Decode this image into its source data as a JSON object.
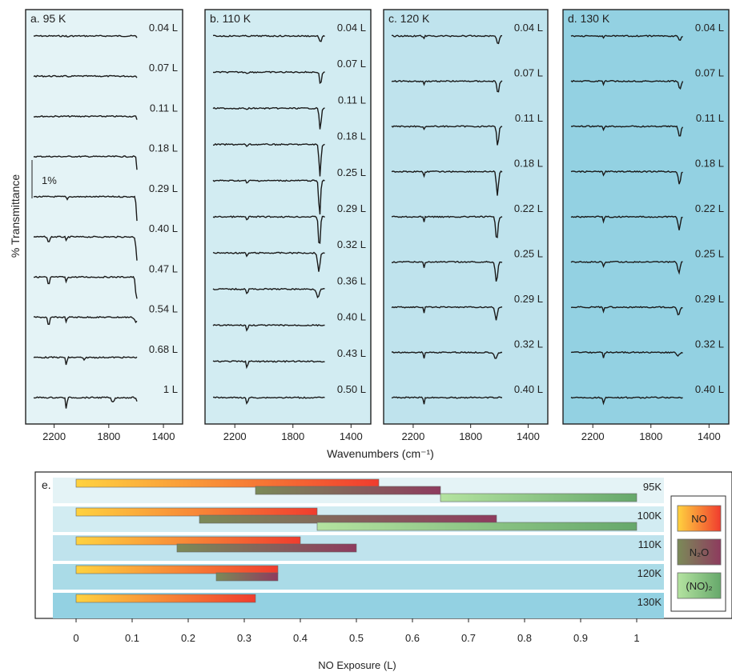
{
  "figure": {
    "ylabel": "% Transmittance",
    "xlabel": "Wavenumbers (cm⁻¹)",
    "scale_bar_label": "1%",
    "bottom_panel_label": "e.",
    "bottom_xlabel": "NO Exposure (L)"
  },
  "chart_data": [
    {
      "type": "line",
      "panel": "a",
      "title": "a. 95 K",
      "background": "#e4f3f6",
      "x_ticks": [
        2200,
        1800,
        1400
      ],
      "xlim": [
        2350,
        1330
      ],
      "traces": [
        {
          "label": "0.04 L",
          "peaks": [
            {
              "center": 1580,
              "depth": 8,
              "width": 13
            },
            {
              "center": 2100,
              "depth": 2,
              "width": 6
            }
          ]
        },
        {
          "label": "0.07 L",
          "peaks": [
            {
              "center": 1580,
              "depth": 12,
              "width": 11
            },
            {
              "center": 2100,
              "depth": 2,
              "width": 6
            }
          ]
        },
        {
          "label": "0.11 L",
          "peaks": [
            {
              "center": 1582,
              "depth": 28,
              "width": 10
            }
          ]
        },
        {
          "label": "0.18 L",
          "peaks": [
            {
              "center": 1586,
              "depth": 45,
              "width": 9
            }
          ]
        },
        {
          "label": "0.29 L",
          "peaks": [
            {
              "center": 1590,
              "depth": 35,
              "width": 11
            },
            {
              "center": 2105,
              "depth": 4,
              "width": 7
            }
          ]
        },
        {
          "label": "0.40 L",
          "peaks": [
            {
              "center": 1592,
              "depth": 30,
              "width": 12
            },
            {
              "center": 2240,
              "depth": 8,
              "width": 10
            },
            {
              "center": 2110,
              "depth": 6,
              "width": 7
            }
          ]
        },
        {
          "label": "0.47 L",
          "peaks": [
            {
              "center": 1596,
              "depth": 28,
              "width": 12
            },
            {
              "center": 2240,
              "depth": 11,
              "width": 10
            },
            {
              "center": 2110,
              "depth": 7,
              "width": 7
            }
          ]
        },
        {
          "label": "0.54 L",
          "peaks": [
            {
              "center": 1600,
              "depth": 6,
              "width": 16
            },
            {
              "center": 2240,
              "depth": 12,
              "width": 10
            },
            {
              "center": 2110,
              "depth": 6,
              "width": 7
            }
          ]
        },
        {
          "label": "0.68 L",
          "peaks": [
            {
              "center": 2110,
              "depth": 11,
              "width": 7
            },
            {
              "center": 1980,
              "depth": 4,
              "width": 10
            }
          ]
        },
        {
          "label": "1 L",
          "peaks": [
            {
              "center": 2110,
              "depth": 18,
              "width": 6
            },
            {
              "center": 1770,
              "depth": 6,
              "width": 15
            },
            {
              "center": 1590,
              "depth": 5,
              "width": 12
            }
          ]
        }
      ]
    },
    {
      "type": "line",
      "panel": "b",
      "title": "b. 110 K",
      "background": "#d2ecf2",
      "x_ticks": [
        2200,
        1800,
        1400
      ],
      "xlim": [
        2350,
        1330
      ],
      "traces": [
        {
          "label": "0.04 L",
          "peaks": [
            {
              "center": 1610,
              "depth": 8,
              "width": 12
            }
          ]
        },
        {
          "label": "0.07 L",
          "peaks": [
            {
              "center": 1610,
              "depth": 16,
              "width": 10
            },
            {
              "center": 2115,
              "depth": 2,
              "width": 6
            }
          ]
        },
        {
          "label": "0.11 L",
          "peaks": [
            {
              "center": 1612,
              "depth": 28,
              "width": 10
            },
            {
              "center": 2115,
              "depth": 3,
              "width": 6
            }
          ]
        },
        {
          "label": "0.18 L",
          "peaks": [
            {
              "center": 1614,
              "depth": 40,
              "width": 10
            },
            {
              "center": 2115,
              "depth": 3,
              "width": 6
            }
          ]
        },
        {
          "label": "0.25 L",
          "peaks": [
            {
              "center": 1616,
              "depth": 44,
              "width": 10
            },
            {
              "center": 2115,
              "depth": 5,
              "width": 6
            }
          ]
        },
        {
          "label": "0.29 L",
          "peaks": [
            {
              "center": 1618,
              "depth": 40,
              "width": 10
            },
            {
              "center": 2115,
              "depth": 6,
              "width": 6
            }
          ]
        },
        {
          "label": "0.32 L",
          "peaks": [
            {
              "center": 1622,
              "depth": 24,
              "width": 12
            },
            {
              "center": 2115,
              "depth": 6,
              "width": 6
            }
          ]
        },
        {
          "label": "0.36 L",
          "peaks": [
            {
              "center": 1628,
              "depth": 10,
              "width": 14
            },
            {
              "center": 2115,
              "depth": 8,
              "width": 6
            }
          ]
        },
        {
          "label": "0.40 L",
          "peaks": [
            {
              "center": 2115,
              "depth": 9,
              "width": 6
            }
          ]
        },
        {
          "label": "0.43 L",
          "peaks": [
            {
              "center": 2115,
              "depth": 10,
              "width": 6
            }
          ]
        },
        {
          "label": "0.50 L",
          "peaks": [
            {
              "center": 2115,
              "depth": 12,
              "width": 6
            }
          ]
        }
      ]
    },
    {
      "type": "line",
      "panel": "c",
      "title": "c. 120 K",
      "background": "#bfe3ed",
      "x_ticks": [
        2200,
        1800,
        1400
      ],
      "xlim": [
        2350,
        1330
      ],
      "traces": [
        {
          "label": "0.04 L",
          "peaks": [
            {
              "center": 1610,
              "depth": 10,
              "width": 12
            },
            {
              "center": 2125,
              "depth": 3,
              "width": 6
            }
          ]
        },
        {
          "label": "0.07 L",
          "peaks": [
            {
              "center": 1610,
              "depth": 16,
              "width": 11
            },
            {
              "center": 2125,
              "depth": 4,
              "width": 6
            }
          ]
        },
        {
          "label": "0.11 L",
          "peaks": [
            {
              "center": 1612,
              "depth": 24,
              "width": 11
            },
            {
              "center": 2125,
              "depth": 4,
              "width": 6
            }
          ]
        },
        {
          "label": "0.18 L",
          "peaks": [
            {
              "center": 1614,
              "depth": 30,
              "width": 11
            },
            {
              "center": 2125,
              "depth": 6,
              "width": 6
            }
          ]
        },
        {
          "label": "0.22 L",
          "peaks": [
            {
              "center": 1618,
              "depth": 30,
              "width": 12
            },
            {
              "center": 2125,
              "depth": 6,
              "width": 6
            }
          ]
        },
        {
          "label": "0.25 L",
          "peaks": [
            {
              "center": 1620,
              "depth": 26,
              "width": 12
            },
            {
              "center": 2125,
              "depth": 7,
              "width": 6
            }
          ]
        },
        {
          "label": "0.29 L",
          "peaks": [
            {
              "center": 1622,
              "depth": 16,
              "width": 12
            },
            {
              "center": 2125,
              "depth": 7,
              "width": 6
            }
          ]
        },
        {
          "label": "0.32 L",
          "peaks": [
            {
              "center": 1626,
              "depth": 8,
              "width": 14
            },
            {
              "center": 2125,
              "depth": 7,
              "width": 6
            }
          ]
        },
        {
          "label": "0.40 L",
          "peaks": [
            {
              "center": 2125,
              "depth": 9,
              "width": 6
            }
          ]
        }
      ]
    },
    {
      "type": "line",
      "panel": "d",
      "title": "d. 130 K",
      "background": "#93d1e2",
      "x_ticks": [
        2200,
        1800,
        1400
      ],
      "xlim": [
        2350,
        1330
      ],
      "traces": [
        {
          "label": "0.04 L",
          "peaks": [
            {
              "center": 1600,
              "depth": 6,
              "width": 12
            },
            {
              "center": 2125,
              "depth": 3,
              "width": 6
            }
          ]
        },
        {
          "label": "0.07 L",
          "peaks": [
            {
              "center": 1600,
              "depth": 10,
              "width": 12
            },
            {
              "center": 2125,
              "depth": 4,
              "width": 6
            }
          ]
        },
        {
          "label": "0.11 L",
          "peaks": [
            {
              "center": 1602,
              "depth": 14,
              "width": 12
            },
            {
              "center": 2125,
              "depth": 4,
              "width": 6
            }
          ]
        },
        {
          "label": "0.18 L",
          "peaks": [
            {
              "center": 1604,
              "depth": 16,
              "width": 12
            },
            {
              "center": 2125,
              "depth": 5,
              "width": 6
            }
          ]
        },
        {
          "label": "0.22 L",
          "peaks": [
            {
              "center": 1606,
              "depth": 16,
              "width": 12
            },
            {
              "center": 2125,
              "depth": 6,
              "width": 6
            }
          ]
        },
        {
          "label": "0.25 L",
          "peaks": [
            {
              "center": 1608,
              "depth": 14,
              "width": 12
            },
            {
              "center": 2125,
              "depth": 6,
              "width": 6
            }
          ]
        },
        {
          "label": "0.29 L",
          "peaks": [
            {
              "center": 1610,
              "depth": 10,
              "width": 13
            },
            {
              "center": 2125,
              "depth": 7,
              "width": 6
            }
          ]
        },
        {
          "label": "0.32 L",
          "peaks": [
            {
              "center": 1614,
              "depth": 5,
              "width": 14
            },
            {
              "center": 2125,
              "depth": 7,
              "width": 7
            }
          ]
        },
        {
          "label": "0.40 L",
          "peaks": [
            {
              "center": 2125,
              "depth": 8,
              "width": 7
            }
          ]
        }
      ]
    },
    {
      "type": "bar",
      "orientation": "horizontal",
      "panel": "e",
      "xlabel": "NO Exposure (L)",
      "x_ticks": [
        0,
        0.1,
        0.2,
        0.3,
        0.4,
        0.5,
        0.6,
        0.7,
        0.8,
        0.9,
        1
      ],
      "xlim": [
        -0.04,
        1.05
      ],
      "legend": [
        {
          "name": "NO",
          "colors": [
            "#ffd23f",
            "#f03c2e"
          ]
        },
        {
          "name": "N₂O",
          "colors": [
            "#7b8a58",
            "#8e3b5e"
          ]
        },
        {
          "name": "(NO)₂",
          "colors": [
            "#b4e3a0",
            "#66a86b"
          ]
        }
      ],
      "legend_position": "right",
      "rows": [
        {
          "label": "95K",
          "background": "#e4f3f6",
          "NO": [
            0,
            0.54
          ],
          "N2O": [
            0.32,
            0.65
          ],
          "NO2dimer": [
            0.65,
            1.0
          ]
        },
        {
          "label": "100K",
          "background": "#d2ecf2",
          "NO": [
            0,
            0.43
          ],
          "N2O": [
            0.22,
            0.75
          ],
          "NO2dimer": [
            0.43,
            1.0
          ]
        },
        {
          "label": "110K",
          "background": "#bfe3ed",
          "NO": [
            0,
            0.4
          ],
          "N2O": [
            0.18,
            0.5
          ],
          "NO2dimer": null
        },
        {
          "label": "120K",
          "background": "#aadbe7",
          "NO": [
            0,
            0.36
          ],
          "N2O": [
            0.25,
            0.36
          ],
          "NO2dimer": null
        },
        {
          "label": "130K",
          "background": "#93d1e2",
          "NO": [
            0,
            0.32
          ],
          "N2O": null,
          "NO2dimer": null
        }
      ]
    }
  ]
}
